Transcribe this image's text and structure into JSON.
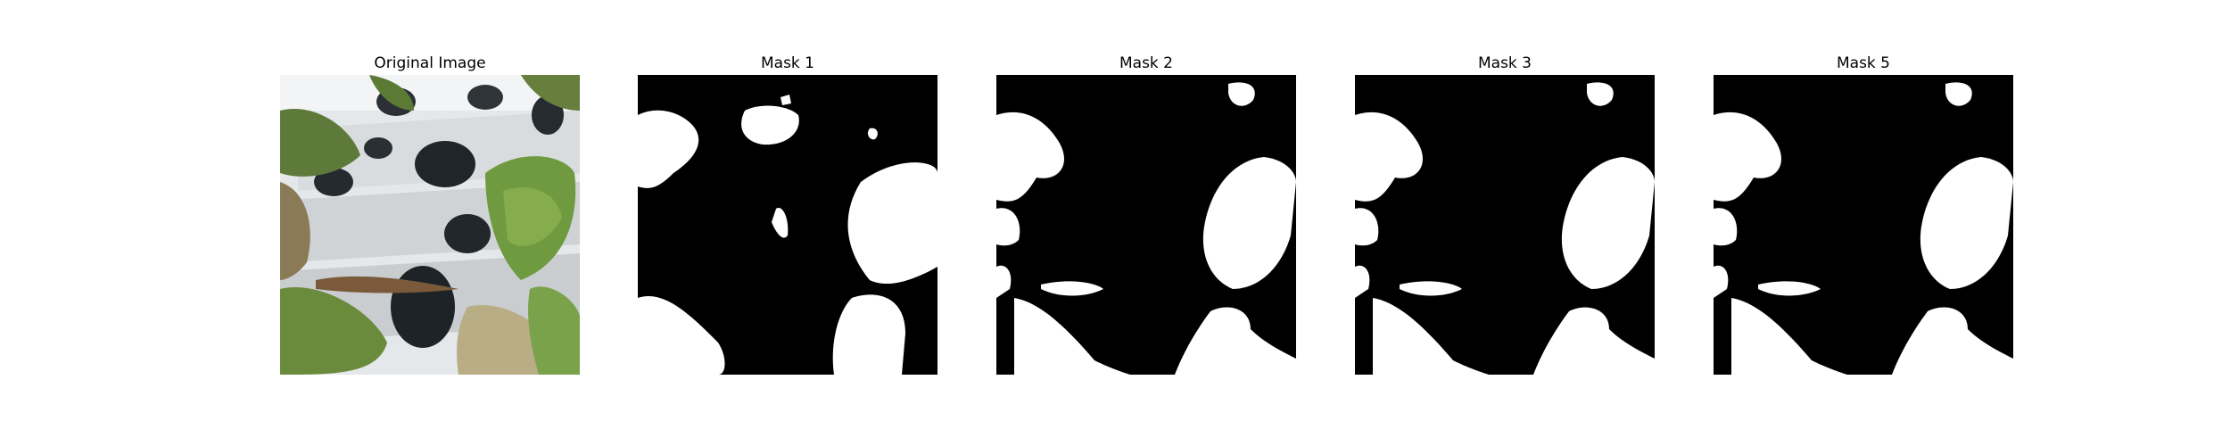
{
  "panels": [
    {
      "title": "Original Image",
      "kind": "photo"
    },
    {
      "title": "Mask 1",
      "kind": "mask"
    },
    {
      "title": "Mask 2",
      "kind": "mask"
    },
    {
      "title": "Mask 3",
      "kind": "mask"
    },
    {
      "title": "Mask 5",
      "kind": "mask"
    }
  ]
}
